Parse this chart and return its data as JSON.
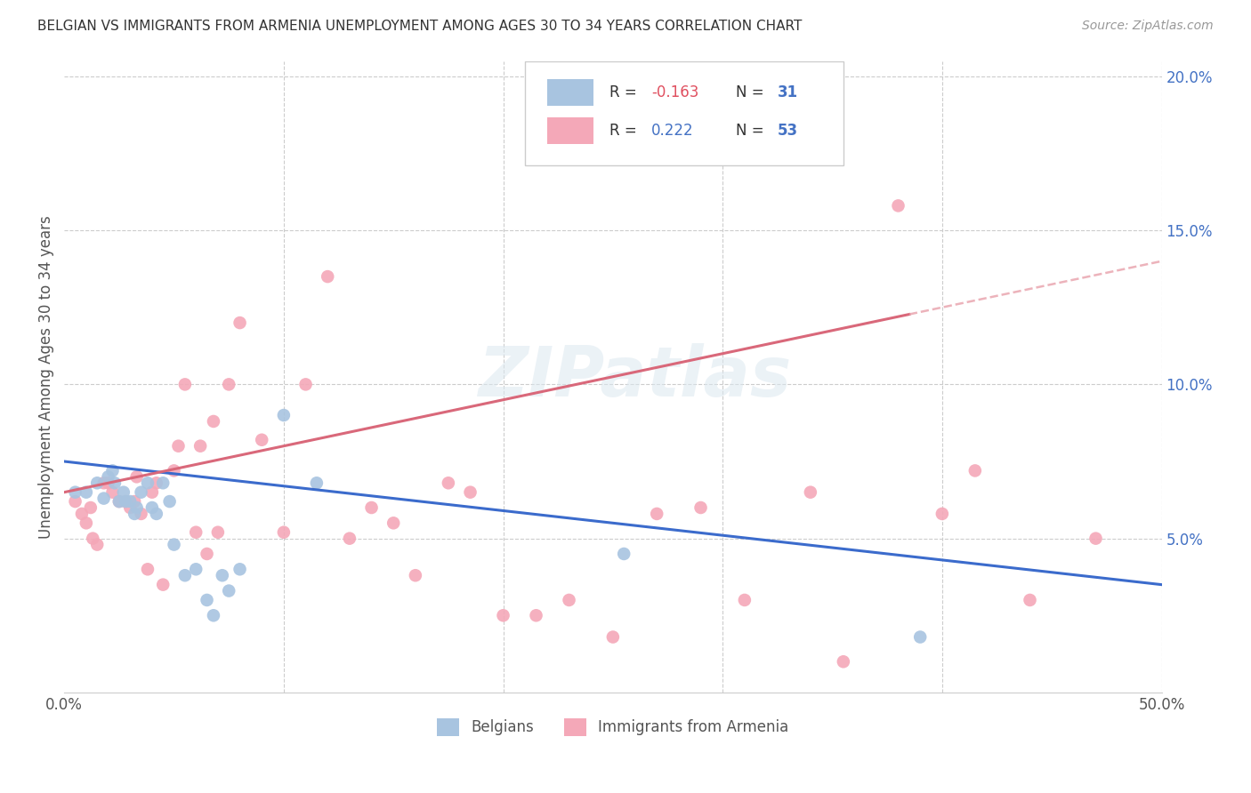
{
  "title": "BELGIAN VS IMMIGRANTS FROM ARMENIA UNEMPLOYMENT AMONG AGES 30 TO 34 YEARS CORRELATION CHART",
  "source": "Source: ZipAtlas.com",
  "ylabel_label": "Unemployment Among Ages 30 to 34 years",
  "xlim": [
    0,
    0.5
  ],
  "ylim": [
    0,
    0.205
  ],
  "belgian_color": "#a8c4e0",
  "armenian_color": "#f4a8b8",
  "belgian_line_color": "#3b6bcc",
  "armenian_line_color": "#d9687a",
  "armenian_line_dashed_color": "#e8a0aa",
  "watermark_text": "ZIPatlas",
  "belgians_label": "Belgians",
  "armenians_label": "Immigrants from Armenia",
  "legend_R_neg": "-0.163",
  "legend_N_belgian": "31",
  "legend_R_pos": "0.222",
  "legend_N_armenian": "53",
  "belgians_x": [
    0.005,
    0.01,
    0.015,
    0.018,
    0.02,
    0.022,
    0.023,
    0.025,
    0.027,
    0.028,
    0.03,
    0.032,
    0.033,
    0.035,
    0.038,
    0.04,
    0.042,
    0.045,
    0.048,
    0.05,
    0.055,
    0.06,
    0.065,
    0.068,
    0.072,
    0.075,
    0.08,
    0.1,
    0.115,
    0.255,
    0.39
  ],
  "belgians_y": [
    0.065,
    0.065,
    0.068,
    0.063,
    0.07,
    0.072,
    0.068,
    0.062,
    0.065,
    0.062,
    0.062,
    0.058,
    0.06,
    0.065,
    0.068,
    0.06,
    0.058,
    0.068,
    0.062,
    0.048,
    0.038,
    0.04,
    0.03,
    0.025,
    0.038,
    0.033,
    0.04,
    0.09,
    0.068,
    0.045,
    0.018
  ],
  "armenians_x": [
    0.005,
    0.008,
    0.01,
    0.012,
    0.013,
    0.015,
    0.018,
    0.02,
    0.022,
    0.025,
    0.028,
    0.03,
    0.032,
    0.033,
    0.035,
    0.038,
    0.04,
    0.042,
    0.045,
    0.05,
    0.052,
    0.055,
    0.06,
    0.062,
    0.065,
    0.068,
    0.07,
    0.075,
    0.08,
    0.09,
    0.1,
    0.11,
    0.12,
    0.13,
    0.14,
    0.15,
    0.16,
    0.175,
    0.185,
    0.2,
    0.215,
    0.23,
    0.25,
    0.27,
    0.29,
    0.31,
    0.34,
    0.355,
    0.38,
    0.4,
    0.415,
    0.44,
    0.47
  ],
  "armenians_y": [
    0.062,
    0.058,
    0.055,
    0.06,
    0.05,
    0.048,
    0.068,
    0.068,
    0.065,
    0.062,
    0.062,
    0.06,
    0.062,
    0.07,
    0.058,
    0.04,
    0.065,
    0.068,
    0.035,
    0.072,
    0.08,
    0.1,
    0.052,
    0.08,
    0.045,
    0.088,
    0.052,
    0.1,
    0.12,
    0.082,
    0.052,
    0.1,
    0.135,
    0.05,
    0.06,
    0.055,
    0.038,
    0.068,
    0.065,
    0.025,
    0.025,
    0.03,
    0.018,
    0.058,
    0.06,
    0.03,
    0.065,
    0.01,
    0.158,
    0.058,
    0.072,
    0.03,
    0.05
  ]
}
